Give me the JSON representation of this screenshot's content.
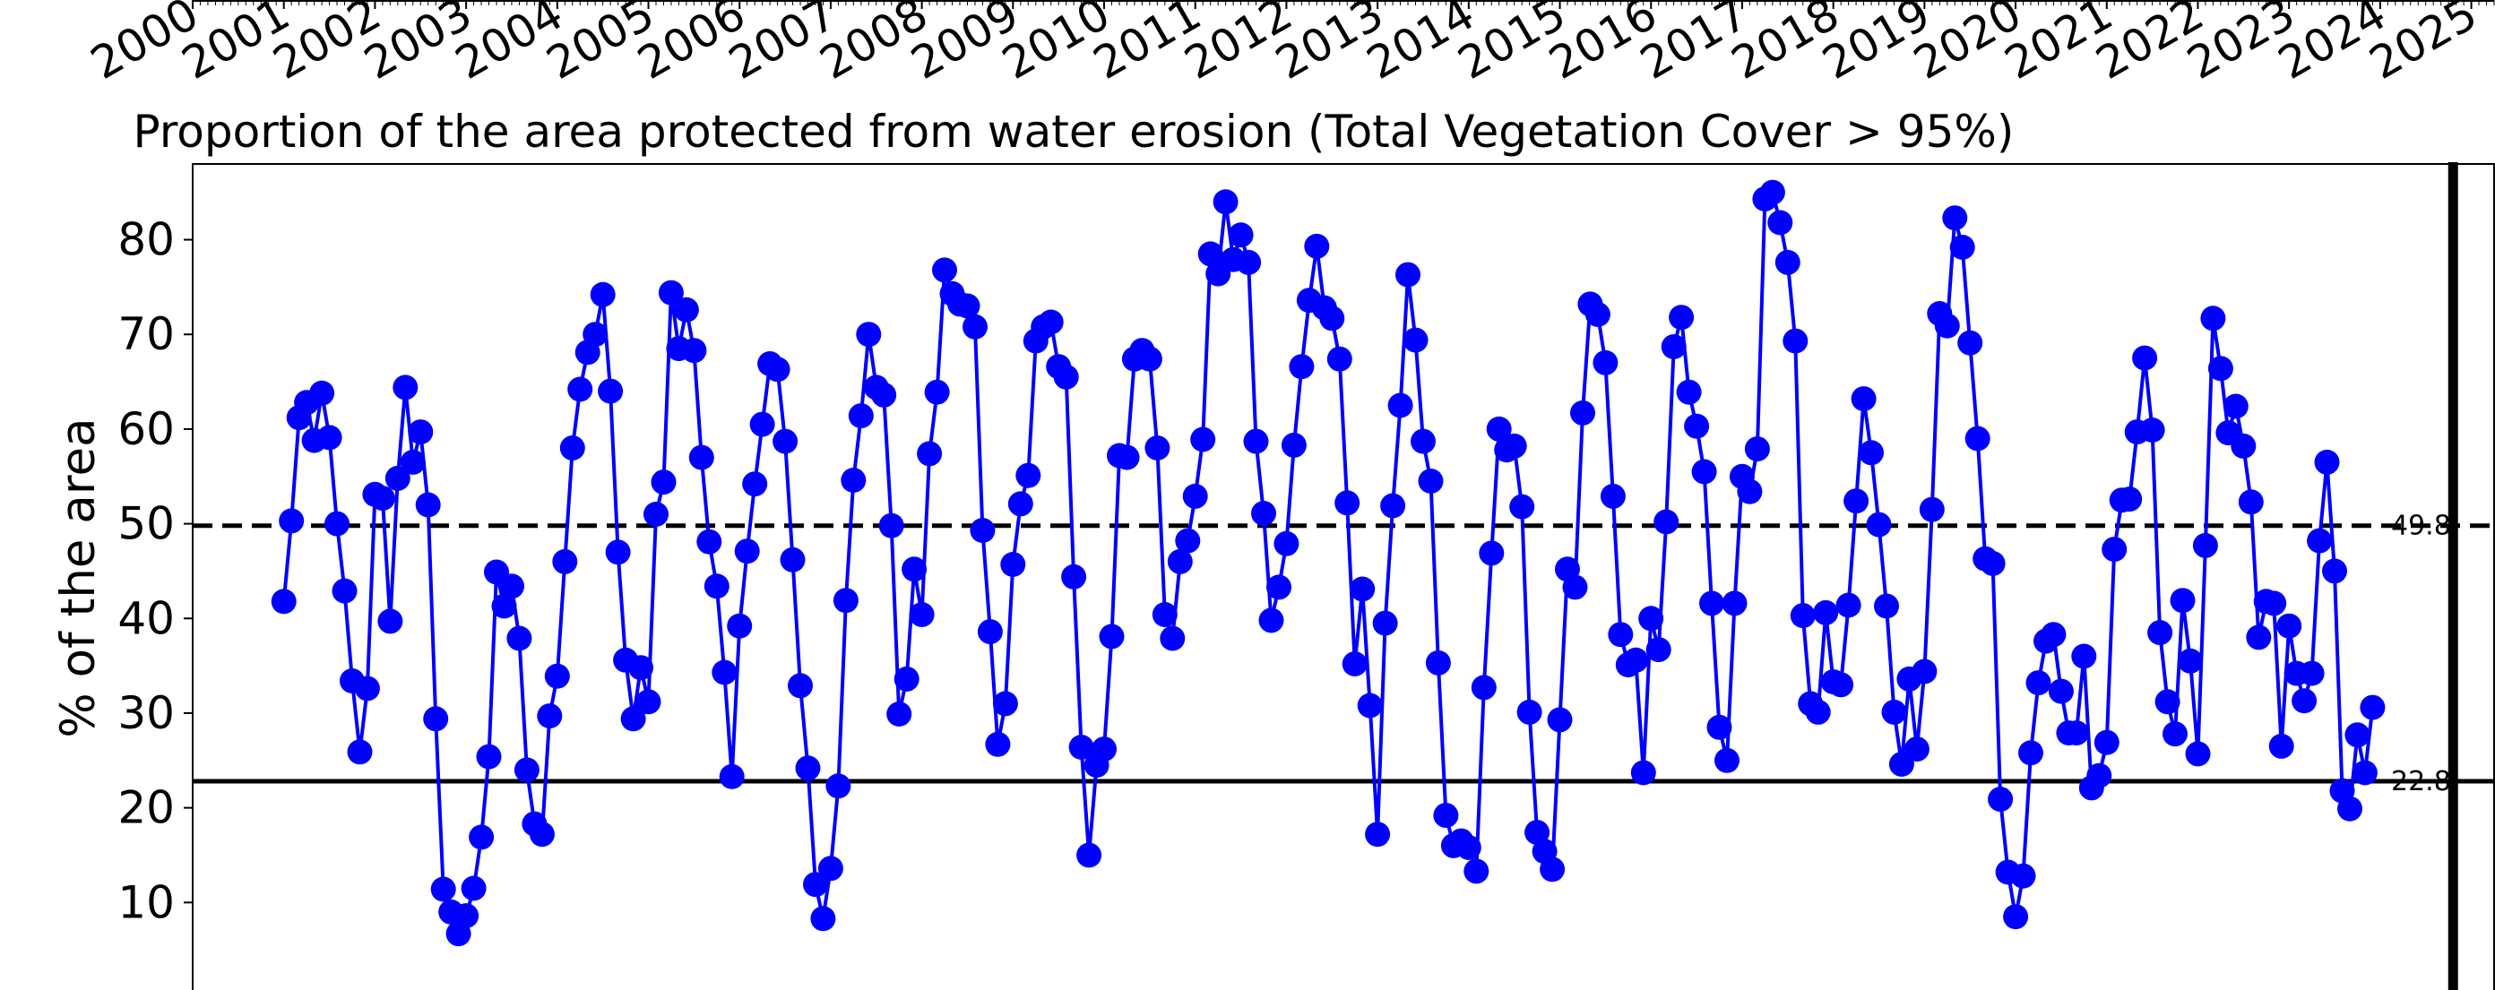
{
  "chart_data": {
    "type": "line",
    "title": "Proportion of the area protected from water erosion (Total Vegetation Cover > 95%)",
    "ylabel": "% of the area",
    "xlabel": "",
    "x_tick_labels": [
      "2000",
      "2001",
      "2002",
      "2003",
      "2004",
      "2005",
      "2006",
      "2007",
      "2008",
      "2009",
      "2010",
      "2011",
      "2012",
      "2013",
      "2014",
      "2015",
      "2016",
      "2017",
      "2018",
      "2019",
      "2020",
      "2021",
      "2022",
      "2023",
      "2024",
      "2025"
    ],
    "y_ticks": [
      10,
      20,
      30,
      40,
      50,
      60,
      70,
      80
    ],
    "xlim": [
      2000,
      2025.25
    ],
    "ylim": [
      0,
      88
    ],
    "grid": false,
    "series": [
      {
        "color": "#0000ff",
        "x_start": 2001.0,
        "x_step": 0.0833333,
        "values": [
          41.8,
          50.3,
          61.2,
          62.8,
          58.8,
          63.8,
          59.1,
          50.0,
          42.9,
          33.4,
          25.9,
          32.6,
          53.1,
          52.7,
          39.7,
          54.8,
          64.4,
          56.5,
          59.7,
          52.0,
          29.4,
          11.4,
          9.0,
          6.7,
          8.6,
          11.5,
          16.9,
          25.4,
          44.9,
          41.3,
          43.4,
          37.9,
          24.0,
          18.3,
          17.2,
          29.7,
          33.9,
          46.0,
          58.0,
          64.2,
          68.1,
          70.0,
          74.2,
          64.0,
          47.0,
          35.6,
          29.4,
          34.8,
          31.2,
          51.0,
          54.4,
          74.4,
          68.5,
          72.6,
          68.3,
          57.0,
          48.1,
          43.4,
          34.3,
          23.3,
          39.2,
          47.1,
          54.2,
          60.5,
          66.9,
          66.3,
          58.7,
          46.2,
          32.9,
          24.2,
          11.9,
          8.3,
          13.6,
          22.3,
          41.9,
          54.6,
          61.4,
          70.0,
          64.4,
          63.6,
          49.8,
          29.9,
          33.6,
          45.2,
          40.4,
          57.4,
          63.9,
          76.8,
          74.3,
          73.2,
          73.0,
          70.8,
          49.3,
          38.6,
          26.7,
          31.0,
          45.7,
          52.1,
          55.1,
          69.3,
          70.8,
          71.3,
          66.6,
          65.5,
          44.4,
          26.4,
          15.0,
          24.5,
          26.2,
          38.1,
          57.2,
          57.0,
          67.4,
          68.3,
          67.4,
          58.0,
          40.4,
          37.9,
          46.0,
          48.2,
          52.9,
          58.9,
          78.5,
          76.4,
          84.0,
          77.9,
          80.5,
          77.6,
          58.7,
          51.1,
          39.8,
          43.3,
          47.9,
          58.3,
          66.6,
          73.6,
          79.3,
          72.8,
          71.7,
          67.4,
          52.2,
          35.2,
          43.1,
          30.8,
          17.2,
          39.5,
          51.9,
          62.5,
          76.3,
          69.4,
          58.7,
          54.5,
          35.3,
          19.2,
          16.0,
          16.5,
          15.8,
          13.3,
          32.7,
          46.9,
          60.0,
          57.8,
          58.2,
          51.8,
          30.1,
          17.4,
          15.4,
          13.5,
          29.3,
          45.2,
          43.3,
          61.7,
          73.2,
          72.1,
          67.0,
          52.9,
          38.3,
          35.1,
          35.6,
          23.7,
          40.0,
          36.7,
          50.2,
          68.7,
          71.8,
          63.9,
          60.3,
          55.5,
          41.6,
          28.5,
          25.0,
          41.6,
          55.0,
          53.4,
          57.9,
          84.3,
          85.0,
          81.8,
          77.6,
          69.3,
          40.3,
          31.0,
          30.1,
          40.6,
          33.3,
          33.0,
          41.4,
          52.4,
          63.2,
          57.5,
          49.9,
          41.3,
          30.1,
          24.6,
          33.6,
          26.2,
          34.4,
          51.5,
          72.2,
          70.9,
          82.3,
          79.2,
          69.1,
          59.0,
          46.3,
          45.8,
          20.9,
          13.2,
          8.5,
          12.8,
          25.8,
          33.2,
          37.6,
          38.3,
          32.3,
          27.9,
          27.9,
          36.0,
          22.1,
          23.4,
          26.9,
          47.3,
          52.5,
          52.6,
          59.7,
          67.5,
          59.9,
          38.5,
          31.2,
          27.8,
          41.9,
          35.5,
          25.7,
          47.7,
          71.7,
          66.4,
          59.6,
          62.4,
          58.2,
          52.3,
          38.0,
          41.8,
          41.6,
          26.5,
          39.2,
          34.2,
          31.3,
          34.2,
          48.2,
          56.5,
          45.0,
          21.8,
          19.9,
          27.7,
          23.7,
          30.6
        ]
      }
    ],
    "reference_lines": [
      {
        "value": 49.8,
        "label": "49.8",
        "style": "dashed"
      },
      {
        "value": 22.8,
        "label": "22.8",
        "style": "solid"
      }
    ],
    "vertical_marker": {
      "x": 2024.8
    }
  }
}
